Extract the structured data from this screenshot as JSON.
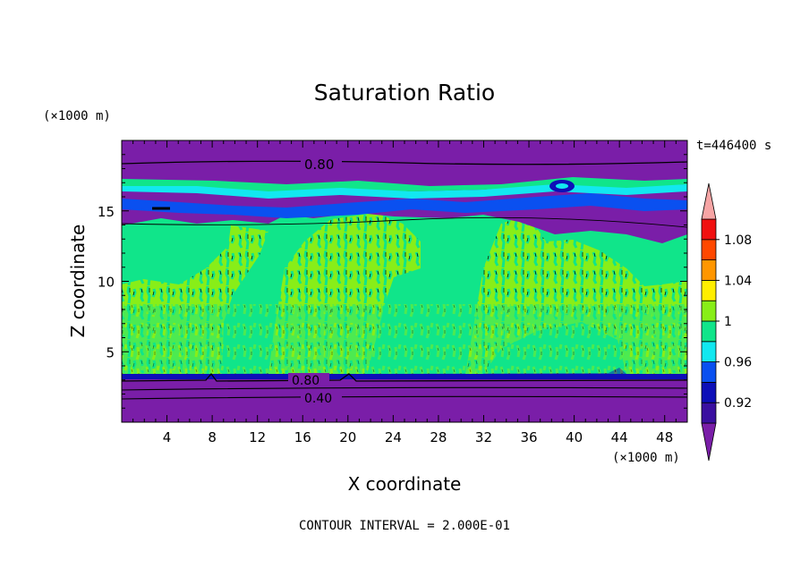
{
  "chart_data": {
    "type": "heatmap",
    "title": "Saturation Ratio",
    "xlabel": "X coordinate",
    "ylabel": "Z coordinate",
    "x_unit": "(×1000 m)",
    "z_unit": "(×1000 m)",
    "time_label": "t=446400 s",
    "footer": "CONTOUR INTERVAL = 2.000E-01",
    "xlim": [
      0,
      50
    ],
    "zlim": [
      0,
      20
    ],
    "x_ticks": [
      "4",
      "8",
      "12",
      "16",
      "20",
      "24",
      "28",
      "32",
      "36",
      "40",
      "44",
      "48"
    ],
    "z_ticks": [
      "5",
      "10",
      "15"
    ],
    "contour_labels": [
      "0.80",
      "0.80",
      "0.40"
    ],
    "colorbar": {
      "labels": [
        "0.92",
        "0.96",
        "1",
        "1.04",
        "1.08"
      ],
      "levels": [
        0.9,
        0.92,
        0.94,
        0.96,
        0.98,
        1.0,
        1.02,
        1.04,
        1.06,
        1.08,
        1.1
      ],
      "colors": [
        "#7a1ea8",
        "#3a0fa0",
        "#0d0fb8",
        "#0a50f0",
        "#12e8f0",
        "#10e58a",
        "#88ee18",
        "#ffee00",
        "#ff9600",
        "#ff4800",
        "#f01010",
        "#f7a5a5"
      ]
    },
    "layers": [
      {
        "z_range": [
          0,
          3.3
        ],
        "value": "below 0.90"
      },
      {
        "z_range": [
          3.3,
          14
        ],
        "value": "0.98–1.02"
      },
      {
        "z_range": [
          14,
          18.5
        ],
        "value": "0.90–1.00"
      },
      {
        "z_range": [
          18.5,
          20
        ],
        "value": "below 0.90"
      }
    ]
  }
}
